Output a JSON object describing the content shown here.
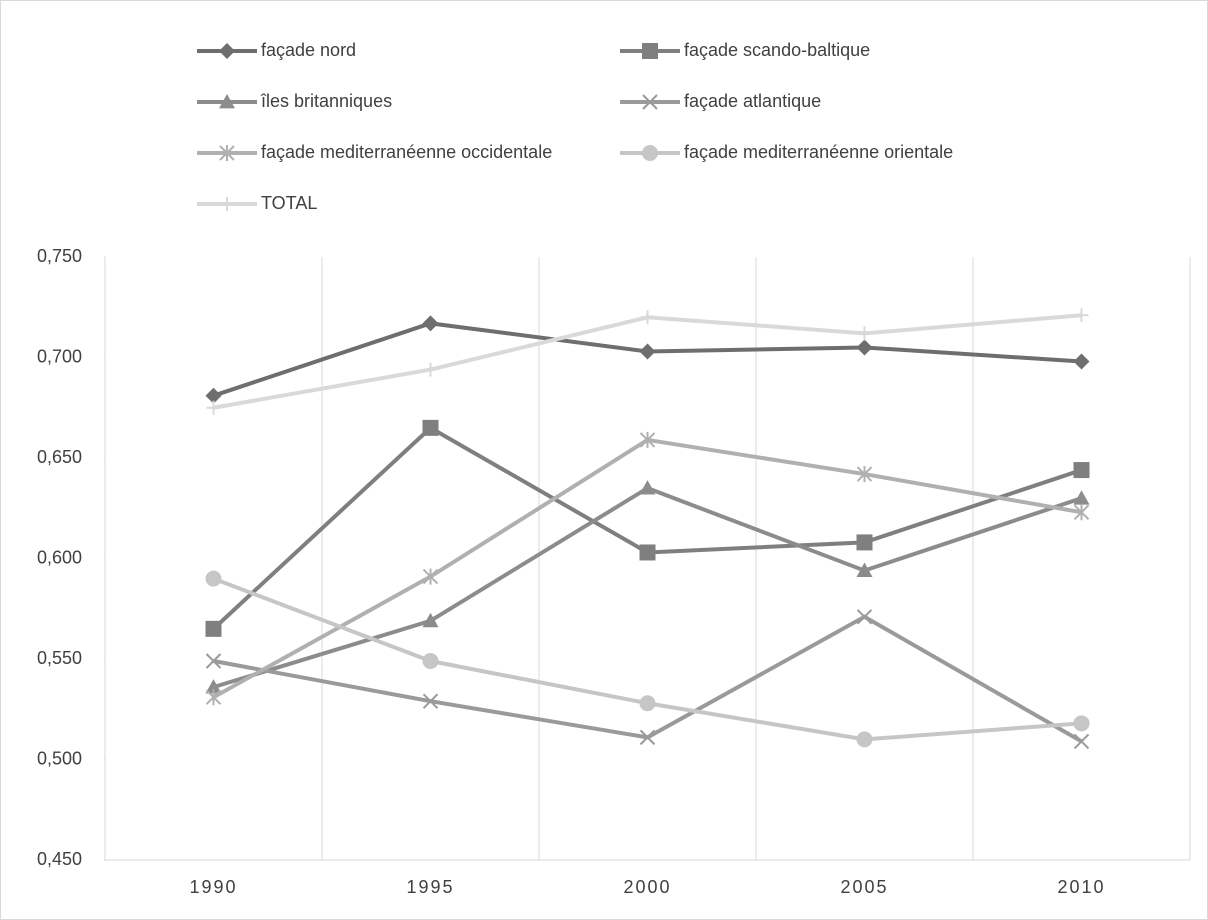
{
  "chart_data": {
    "type": "line",
    "categories": [
      "1990",
      "1995",
      "2000",
      "2005",
      "2010"
    ],
    "series": [
      {
        "name": "façade nord",
        "color": "#6e6e6e",
        "marker": "diamond",
        "values": [
          0.681,
          0.717,
          0.703,
          0.705,
          0.698
        ]
      },
      {
        "name": "façade scando-baltique",
        "color": "#7f7f7f",
        "marker": "square",
        "values": [
          0.565,
          0.665,
          0.603,
          0.608,
          0.644
        ]
      },
      {
        "name": "îles britanniques",
        "color": "#8c8c8c",
        "marker": "triangle",
        "values": [
          0.536,
          0.569,
          0.635,
          0.594,
          0.63
        ]
      },
      {
        "name": "façade atlantique",
        "color": "#9a9a9a",
        "marker": "x",
        "values": [
          0.549,
          0.529,
          0.511,
          0.571,
          0.509
        ]
      },
      {
        "name": "façade mediterranéenne occidentale",
        "color": "#b0b0b0",
        "marker": "star",
        "values": [
          0.531,
          0.591,
          0.659,
          0.642,
          0.623
        ]
      },
      {
        "name": "façade mediterranéenne orientale",
        "color": "#c6c6c6",
        "marker": "circle",
        "values": [
          0.59,
          0.549,
          0.528,
          0.51,
          0.518
        ]
      },
      {
        "name": "TOTAL",
        "color": "#d9d9d9",
        "marker": "plus",
        "values": [
          0.675,
          0.694,
          0.72,
          0.712,
          0.721
        ]
      }
    ],
    "ylim": [
      0.45,
      0.75
    ],
    "yticks": [
      {
        "value": 0.45,
        "label": "0,450"
      },
      {
        "value": 0.5,
        "label": "0,500"
      },
      {
        "value": 0.55,
        "label": "0,550"
      },
      {
        "value": 0.6,
        "label": "0,600"
      },
      {
        "value": 0.65,
        "label": "0,650"
      },
      {
        "value": 0.7,
        "label": "0,700"
      },
      {
        "value": 0.75,
        "label": "0,750"
      }
    ],
    "grid": "vertical",
    "legend": "top"
  }
}
